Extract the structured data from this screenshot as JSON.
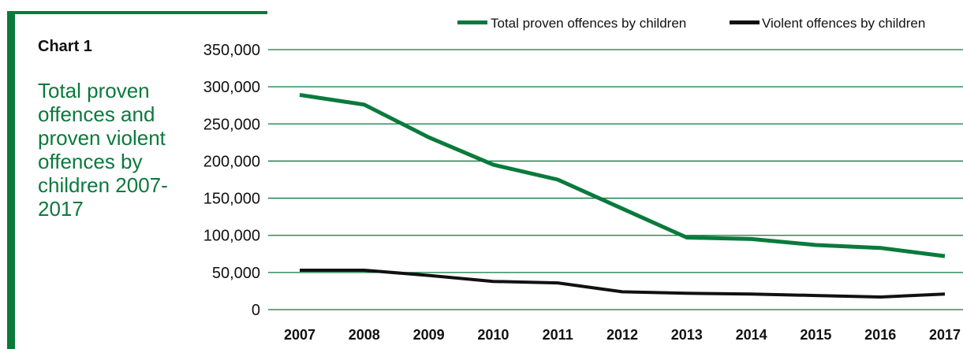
{
  "panel": {
    "label": "Chart 1",
    "title": "Total proven offences and proven violent offences by children 2007-2017"
  },
  "colors": {
    "accent": "#0a7a3c",
    "series_total": "#0a7a3c",
    "series_violent": "#111111",
    "gridline": "#0a7a3c"
  },
  "chart_data": {
    "type": "line",
    "title": "",
    "xlabel": "",
    "ylabel": "",
    "x": [
      "2007",
      "2008",
      "2009",
      "2010",
      "2011",
      "2012",
      "2013",
      "2014",
      "2015",
      "2016",
      "2017"
    ],
    "ylim": [
      0,
      350000
    ],
    "yticks": [
      0,
      50000,
      100000,
      150000,
      200000,
      250000,
      300000,
      350000
    ],
    "ytick_labels": [
      "0",
      "50,000",
      "100,000",
      "150,000",
      "200,000",
      "250,000",
      "300,000",
      "350,000"
    ],
    "grid": true,
    "legend_position": "top-right",
    "series": [
      {
        "name": "Total proven offences by children",
        "values": [
          289000,
          276000,
          232000,
          195000,
          175000,
          136000,
          97000,
          95000,
          87000,
          83000,
          72000
        ]
      },
      {
        "name": "Violent offences by children",
        "values": [
          53000,
          53000,
          46000,
          38000,
          36000,
          24000,
          22000,
          21000,
          19000,
          17000,
          21000
        ]
      }
    ]
  }
}
